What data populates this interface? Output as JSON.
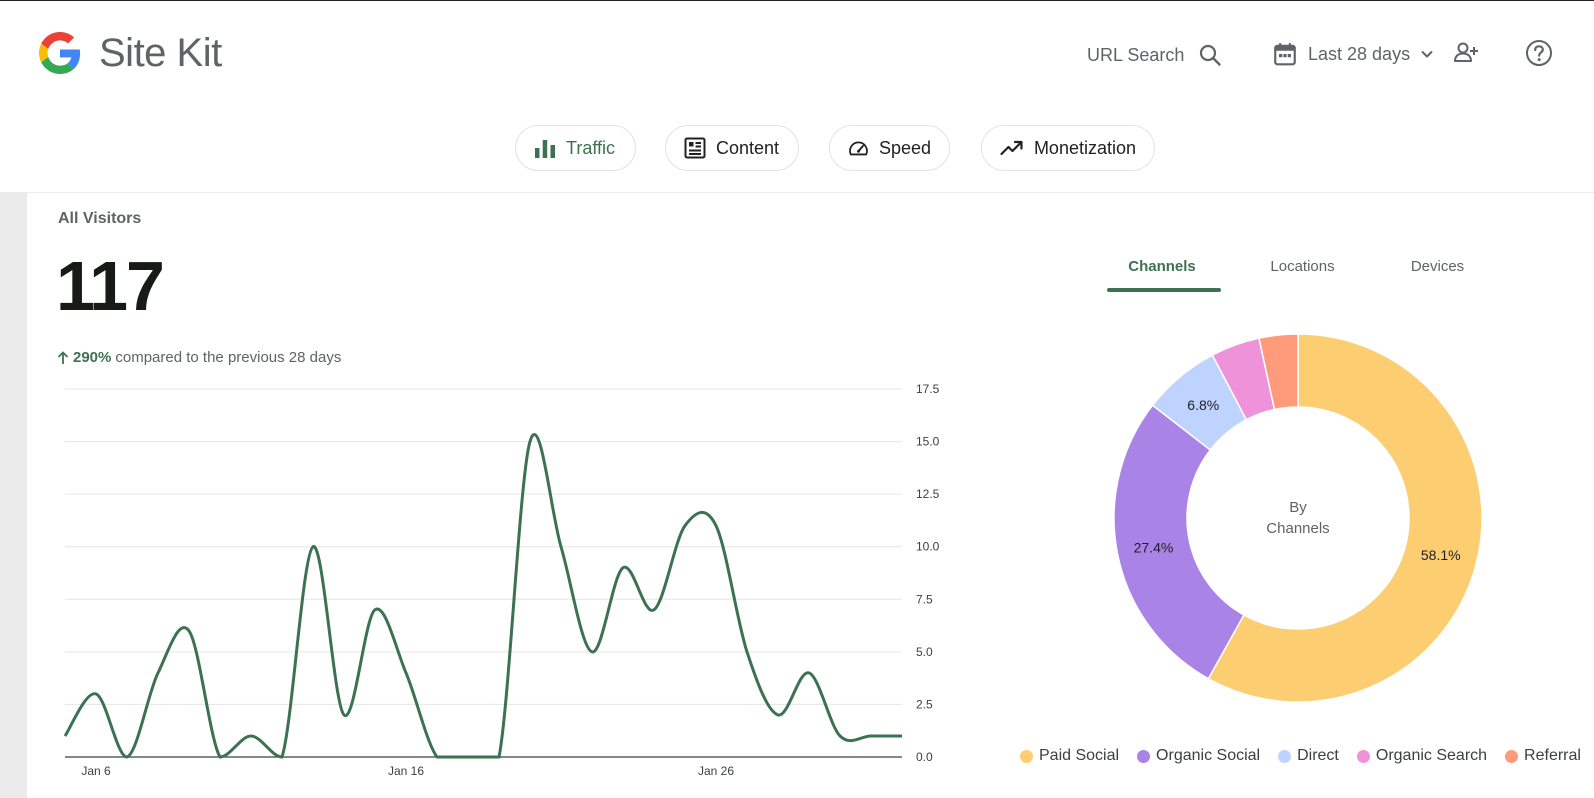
{
  "header": {
    "title": "Site Kit",
    "url_search_label": "URL Search",
    "date_range_label": "Last 28 days"
  },
  "nav": {
    "chips": [
      {
        "label": "Traffic",
        "icon": "bar-chart-icon",
        "active": true
      },
      {
        "label": "Content",
        "icon": "article-icon",
        "active": false
      },
      {
        "label": "Speed",
        "icon": "speedometer-icon",
        "active": false
      },
      {
        "label": "Monetization",
        "icon": "trending-up-icon",
        "active": false
      }
    ]
  },
  "metric": {
    "title": "All Visitors",
    "value": "117",
    "change_pct": "290%",
    "change_text": "compared to the previous 28 days",
    "change_direction": "up"
  },
  "tabs": [
    {
      "label": "Channels",
      "active": true
    },
    {
      "label": "Locations",
      "active": false
    },
    {
      "label": "Devices",
      "active": false
    }
  ],
  "colors": {
    "brand_green": "#3c7251",
    "paid_social": "#fdcd72",
    "organic_social": "#a983e6",
    "direct": "#bed4ff",
    "organic_search": "#ee92da",
    "referral": "#ff9b7a"
  },
  "chart_data": [
    {
      "type": "line",
      "title": "",
      "x": [
        "Jan 5",
        "Jan 6",
        "Jan 7",
        "Jan 8",
        "Jan 9",
        "Jan 10",
        "Jan 11",
        "Jan 12",
        "Jan 13",
        "Jan 14",
        "Jan 15",
        "Jan 16",
        "Jan 17",
        "Jan 18",
        "Jan 19",
        "Jan 20",
        "Jan 21",
        "Jan 22",
        "Jan 23",
        "Jan 24",
        "Jan 25",
        "Jan 26",
        "Jan 27",
        "Jan 28",
        "Jan 29",
        "Jan 30",
        "Jan 31",
        "Feb 1"
      ],
      "x_tick_labels": [
        "Jan 6",
        "Jan 16",
        "Jan 26"
      ],
      "series": [
        {
          "values": [
            1,
            3,
            0,
            4,
            6,
            0,
            1,
            0,
            10,
            2,
            7,
            4,
            0,
            0,
            0,
            15,
            10,
            5,
            9,
            7,
            11,
            11,
            5,
            2,
            4,
            1,
            1,
            1
          ]
        }
      ],
      "ylim": [
        0,
        17.5
      ],
      "y_ticks": [
        "0.0",
        "2.5",
        "5.0",
        "7.5",
        "10.0",
        "12.5",
        "15.0",
        "17.5"
      ],
      "y_axis_side": "right",
      "grid": true,
      "color": "#3c7251"
    },
    {
      "type": "pie",
      "title": "",
      "center_label_line1": "By",
      "center_label_line2": "Channels",
      "slices": [
        {
          "name": "Paid Social",
          "value": 58.1,
          "label": "58.1%",
          "color": "#fdcd72"
        },
        {
          "name": "Organic Social",
          "value": 27.4,
          "label": "27.4%",
          "color": "#a983e6"
        },
        {
          "name": "Direct",
          "value": 6.8,
          "label": "6.8%",
          "color": "#bed4ff"
        },
        {
          "name": "Organic Search",
          "value": 4.3,
          "label": "",
          "color": "#ee92da"
        },
        {
          "name": "Referral",
          "value": 3.4,
          "label": "",
          "color": "#ff9b7a"
        }
      ],
      "legend_position": "bottom"
    }
  ]
}
